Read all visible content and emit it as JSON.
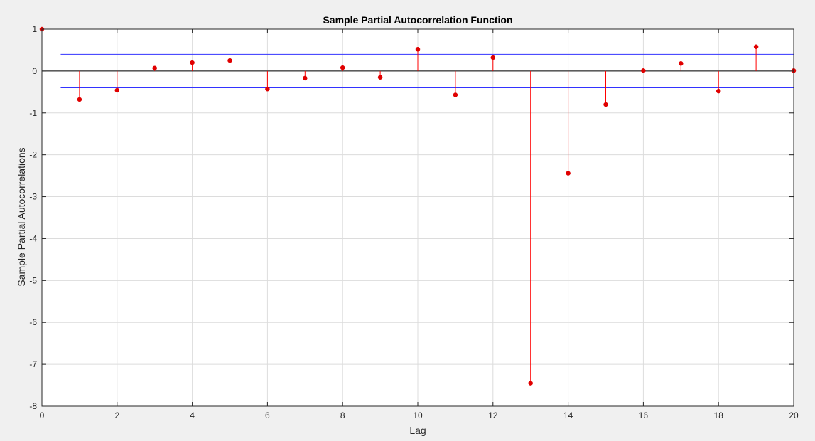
{
  "chart_data": {
    "type": "stem",
    "title": "Sample Partial Autocorrelation Function",
    "xlabel": "Lag",
    "ylabel": "Sample Partial Autocorrelations",
    "xlim": [
      0,
      20
    ],
    "ylim": [
      -8,
      1
    ],
    "xticks": [
      0,
      2,
      4,
      6,
      8,
      10,
      12,
      14,
      16,
      18,
      20
    ],
    "yticks": [
      1,
      0,
      -1,
      -2,
      -3,
      -4,
      -5,
      -6,
      -7,
      -8
    ],
    "grid": true,
    "series": [
      {
        "x": [
          0,
          1,
          2,
          3,
          4,
          5,
          6,
          7,
          8,
          9,
          10,
          11,
          12,
          13,
          14,
          15,
          16,
          17,
          18,
          19,
          20
        ],
        "values": [
          1,
          -0.68,
          -0.46,
          0.07,
          0.2,
          0.25,
          -0.43,
          -0.17,
          0.08,
          -0.15,
          0.52,
          -0.57,
          0.32,
          -7.45,
          -2.44,
          -0.8,
          0.01,
          0.18,
          -0.48,
          0.58,
          0.01
        ]
      }
    ],
    "confidence_bounds": {
      "upper": 0.4,
      "lower": -0.4,
      "x_range": [
        0.5,
        20
      ]
    },
    "colors": {
      "stem": "#ff0000",
      "marker": "#e00000",
      "bounds": "#3333ff",
      "zero_line": "#000000",
      "grid": "#dcdcdc",
      "axes_bg": "#ffffff"
    }
  }
}
